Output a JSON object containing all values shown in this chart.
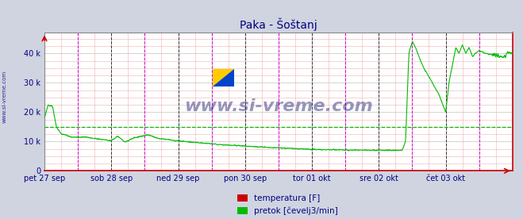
{
  "title": "Paka - Šoštanj",
  "background_color": "#d0d4e0",
  "plot_background": "#ffffff",
  "ylabel": "",
  "xlabel": "",
  "yticks": [
    0,
    10000,
    20000,
    30000,
    40000
  ],
  "ytick_labels": [
    "0",
    "10 k",
    "20 k",
    "30 k",
    "40 k"
  ],
  "ylim": [
    0,
    47000
  ],
  "xtick_labels": [
    "pet 27 sep",
    "sob 28 sep",
    "ned 29 sep",
    "pon 30 sep",
    "tor 01 okt",
    "sre 02 okt",
    "čet 03 okt"
  ],
  "hline_value": 15000,
  "hline_color": "#00bb00",
  "flow_color": "#00bb00",
  "temp_color": "#cc0000",
  "watermark": "www.si-vreme.com",
  "legend_temp": "temperatura [F]",
  "legend_flow": "pretok [čevelj3/min]",
  "title_color": "#000080",
  "axis_label_color": "#000080",
  "watermark_color": "#000080",
  "side_watermark": "www.si-vreme.com"
}
